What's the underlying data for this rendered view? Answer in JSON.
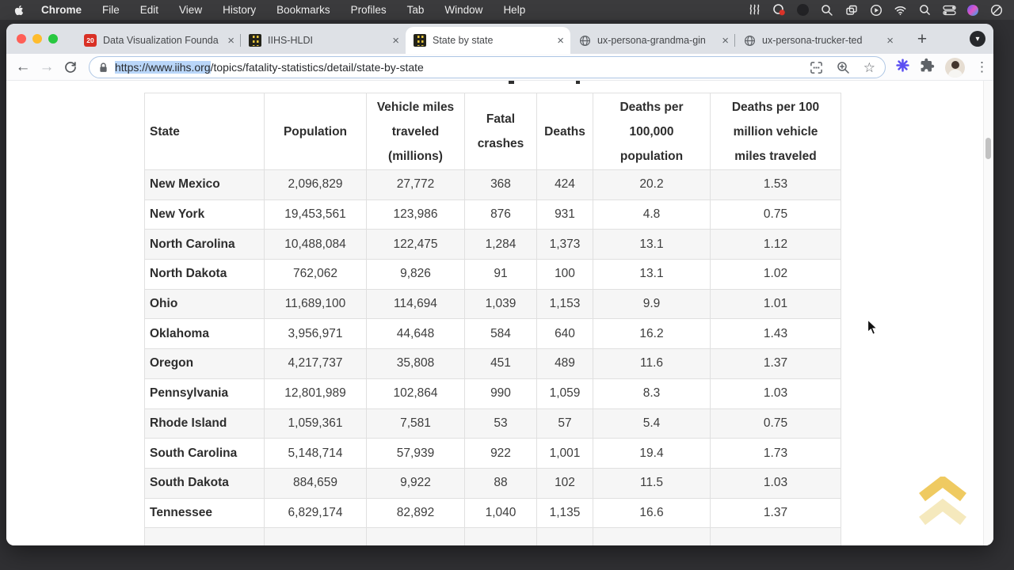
{
  "menubar": {
    "app_name": "Chrome",
    "items": [
      "File",
      "Edit",
      "View",
      "History",
      "Bookmarks",
      "Profiles",
      "Tab",
      "Window",
      "Help"
    ],
    "status_icons": [
      "waves-icon",
      "creative-cloud-badge-icon",
      "app-dot-icon",
      "zoom-loupe-icon",
      "windows-stack-icon",
      "play-circle-icon",
      "wifi-icon",
      "spotlight-search-icon",
      "switches-icon",
      "color-app-icon",
      "do-not-disturb-icon"
    ]
  },
  "window": {
    "tabs": [
      {
        "title": "Data Visualization Founda",
        "favicon": "badge-20",
        "active": false
      },
      {
        "title": "IIHS-HLDI",
        "favicon": "iihs-road",
        "active": false
      },
      {
        "title": "State by state",
        "favicon": "iihs-road",
        "active": true
      },
      {
        "title": "ux-persona-grandma-gin",
        "favicon": "globe",
        "active": false
      },
      {
        "title": "ux-persona-trucker-ted",
        "favicon": "globe",
        "active": false
      }
    ],
    "tab_badge_text": "20",
    "close_glyph": "×",
    "new_tab_glyph": "+",
    "tab_menu_glyph": "▾",
    "toolbar": {
      "back_glyph": "←",
      "forward_glyph": "→",
      "url_selected": "https://www.iihs.org",
      "url_rest": "/topics/fatality-statistics/detail/state-by-state",
      "bookmark_star_glyph": "☆",
      "menu_dots_glyph": "⋮"
    }
  },
  "page": {
    "table": {
      "headers": [
        "State",
        "Population",
        "Vehicle miles\ntraveled\n(millions)",
        "Fatal\ncrashes",
        "Deaths",
        "Deaths per\n100,000\npopulation",
        "Deaths per 100\nmillion vehicle\nmiles traveled"
      ],
      "rows": [
        [
          "New Mexico",
          "2,096,829",
          "27,772",
          "368",
          "424",
          "20.2",
          "1.53"
        ],
        [
          "New York",
          "19,453,561",
          "123,986",
          "876",
          "931",
          "4.8",
          "0.75"
        ],
        [
          "North Carolina",
          "10,488,084",
          "122,475",
          "1,284",
          "1,373",
          "13.1",
          "1.12"
        ],
        [
          "North Dakota",
          "762,062",
          "9,826",
          "91",
          "100",
          "13.1",
          "1.02"
        ],
        [
          "Ohio",
          "11,689,100",
          "114,694",
          "1,039",
          "1,153",
          "9.9",
          "1.01"
        ],
        [
          "Oklahoma",
          "3,956,971",
          "44,648",
          "584",
          "640",
          "16.2",
          "1.43"
        ],
        [
          "Oregon",
          "4,217,737",
          "35,808",
          "451",
          "489",
          "11.6",
          "1.37"
        ],
        [
          "Pennsylvania",
          "12,801,989",
          "102,864",
          "990",
          "1,059",
          "8.3",
          "1.03"
        ],
        [
          "Rhode Island",
          "1,059,361",
          "7,581",
          "53",
          "57",
          "5.4",
          "0.75"
        ],
        [
          "South Carolina",
          "5,148,714",
          "57,939",
          "922",
          "1,001",
          "19.4",
          "1.73"
        ],
        [
          "South Dakota",
          "884,659",
          "9,922",
          "88",
          "102",
          "11.5",
          "1.03"
        ],
        [
          "Tennessee",
          "6,829,174",
          "82,892",
          "1,040",
          "1,135",
          "16.6",
          "1.37"
        ]
      ]
    },
    "colors": {
      "row_stripe": "#f6f6f6",
      "table_border": "#e0e0e0",
      "back_to_top_gold": "#ecc145",
      "url_selection": "#b9d6f9"
    }
  }
}
